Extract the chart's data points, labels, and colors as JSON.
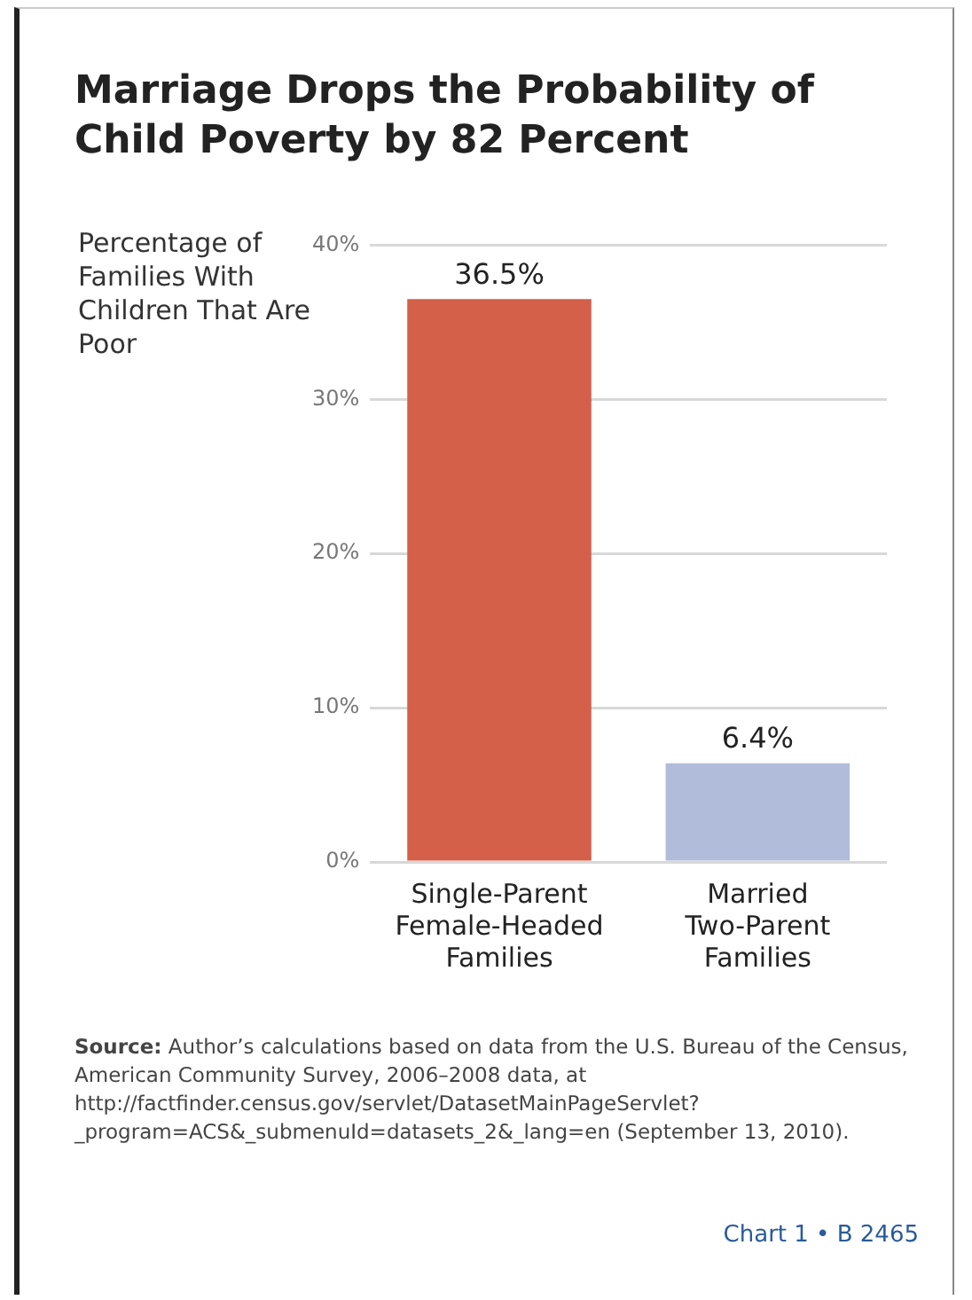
{
  "chart_data": {
    "type": "bar",
    "title": "Marriage Drops the Probability of Child Poverty by 82 Percent",
    "ylabel": "Percentage of Families With Children That Are Poor",
    "categories": [
      "Single-Parent Female-Headed Families",
      "Married Two-Parent Families"
    ],
    "values": [
      36.5,
      6.4
    ],
    "colors": [
      "#d4604a",
      "#b0bcd9"
    ],
    "value_labels": [
      "36.5%",
      "6.4%"
    ],
    "ylim": [
      0,
      40
    ],
    "yticks": [
      {
        "value": 0,
        "label": "0%"
      },
      {
        "value": 10,
        "label": "10%"
      },
      {
        "value": 20,
        "label": "20%"
      },
      {
        "value": 30,
        "label": "30%"
      },
      {
        "value": 40,
        "label": "40%"
      }
    ],
    "grid": "y",
    "legend": false,
    "annotations": [
      "Source: Author’s calculations based on data from the U.S. Bureau of the Census, American Community Survey, 2006–2008 data, at http://factfinder.census.gov/servlet/DatasetMainPageServlet?_program=ACS&_submenuId=datasets_2&_lang=en (September 13, 2010).",
      "Chart 1 • B 2465"
    ]
  }
}
